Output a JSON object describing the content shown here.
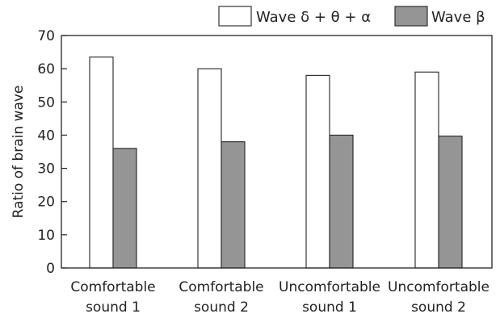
{
  "chart_data": {
    "type": "bar",
    "categories": [
      [
        "Comfortable",
        "sound 1"
      ],
      [
        "Comfortable",
        "sound 2"
      ],
      [
        "Uncomfortable",
        "sound 1"
      ],
      [
        "Uncomfortable",
        "sound 2"
      ]
    ],
    "series": [
      {
        "name": "Wave δ + θ + α",
        "values": [
          63.5,
          60,
          58,
          59
        ],
        "color": "#ffffff"
      },
      {
        "name": "Wave β",
        "values": [
          36,
          38,
          40,
          39.7
        ],
        "color": "#959595"
      }
    ],
    "title": "",
    "xlabel": "",
    "ylabel": "Ratio of brain wave",
    "ylim": [
      0,
      70
    ],
    "yticks": [
      0,
      10,
      20,
      30,
      40,
      50,
      60,
      70
    ],
    "grid": false,
    "legend_position": "top-right"
  }
}
